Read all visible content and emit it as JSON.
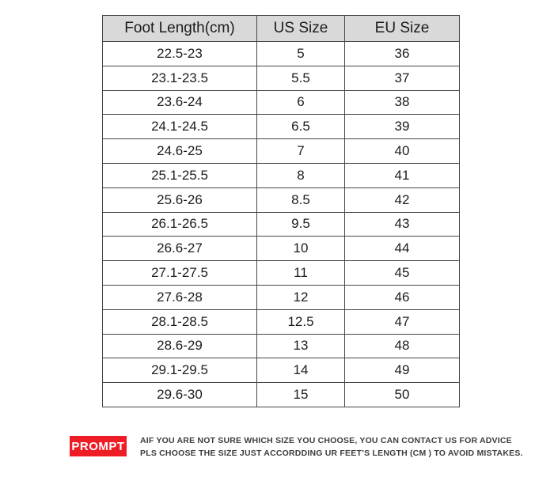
{
  "chart_data": {
    "type": "table",
    "columns": [
      "Foot Length(cm)",
      "US Size",
      "EU Size"
    ],
    "rows": [
      [
        "22.5-23",
        "5",
        "36"
      ],
      [
        "23.1-23.5",
        "5.5",
        "37"
      ],
      [
        "23.6-24",
        "6",
        "38"
      ],
      [
        "24.1-24.5",
        "6.5",
        "39"
      ],
      [
        "24.6-25",
        "7",
        "40"
      ],
      [
        "25.1-25.5",
        "8",
        "41"
      ],
      [
        "25.6-26",
        "8.5",
        "42"
      ],
      [
        "26.1-26.5",
        "9.5",
        "43"
      ],
      [
        "26.6-27",
        "10",
        "44"
      ],
      [
        "27.1-27.5",
        "11",
        "45"
      ],
      [
        "27.6-28",
        "12",
        "46"
      ],
      [
        "28.1-28.5",
        "12.5",
        "47"
      ],
      [
        "28.6-29",
        "13",
        "48"
      ],
      [
        "29.1-29.5",
        "14",
        "49"
      ],
      [
        "29.6-30",
        "15",
        "50"
      ]
    ]
  },
  "footer": {
    "badge_label": "PROMPT",
    "line1": "AIF YOU ARE NOT SURE WHICH SIZE YOU CHOOSE,  YOU CAN CONTACT US FOR ADVICE",
    "line2": "PLS CHOOSE THE SIZE JUST ACCORDDING UR FEET’S LENGTH (CM ) TO AVOID MISTAKES."
  },
  "colors": {
    "badge_red": "#ee1c25",
    "header_bg": "#d9d9d9",
    "table_border": "#454545"
  }
}
